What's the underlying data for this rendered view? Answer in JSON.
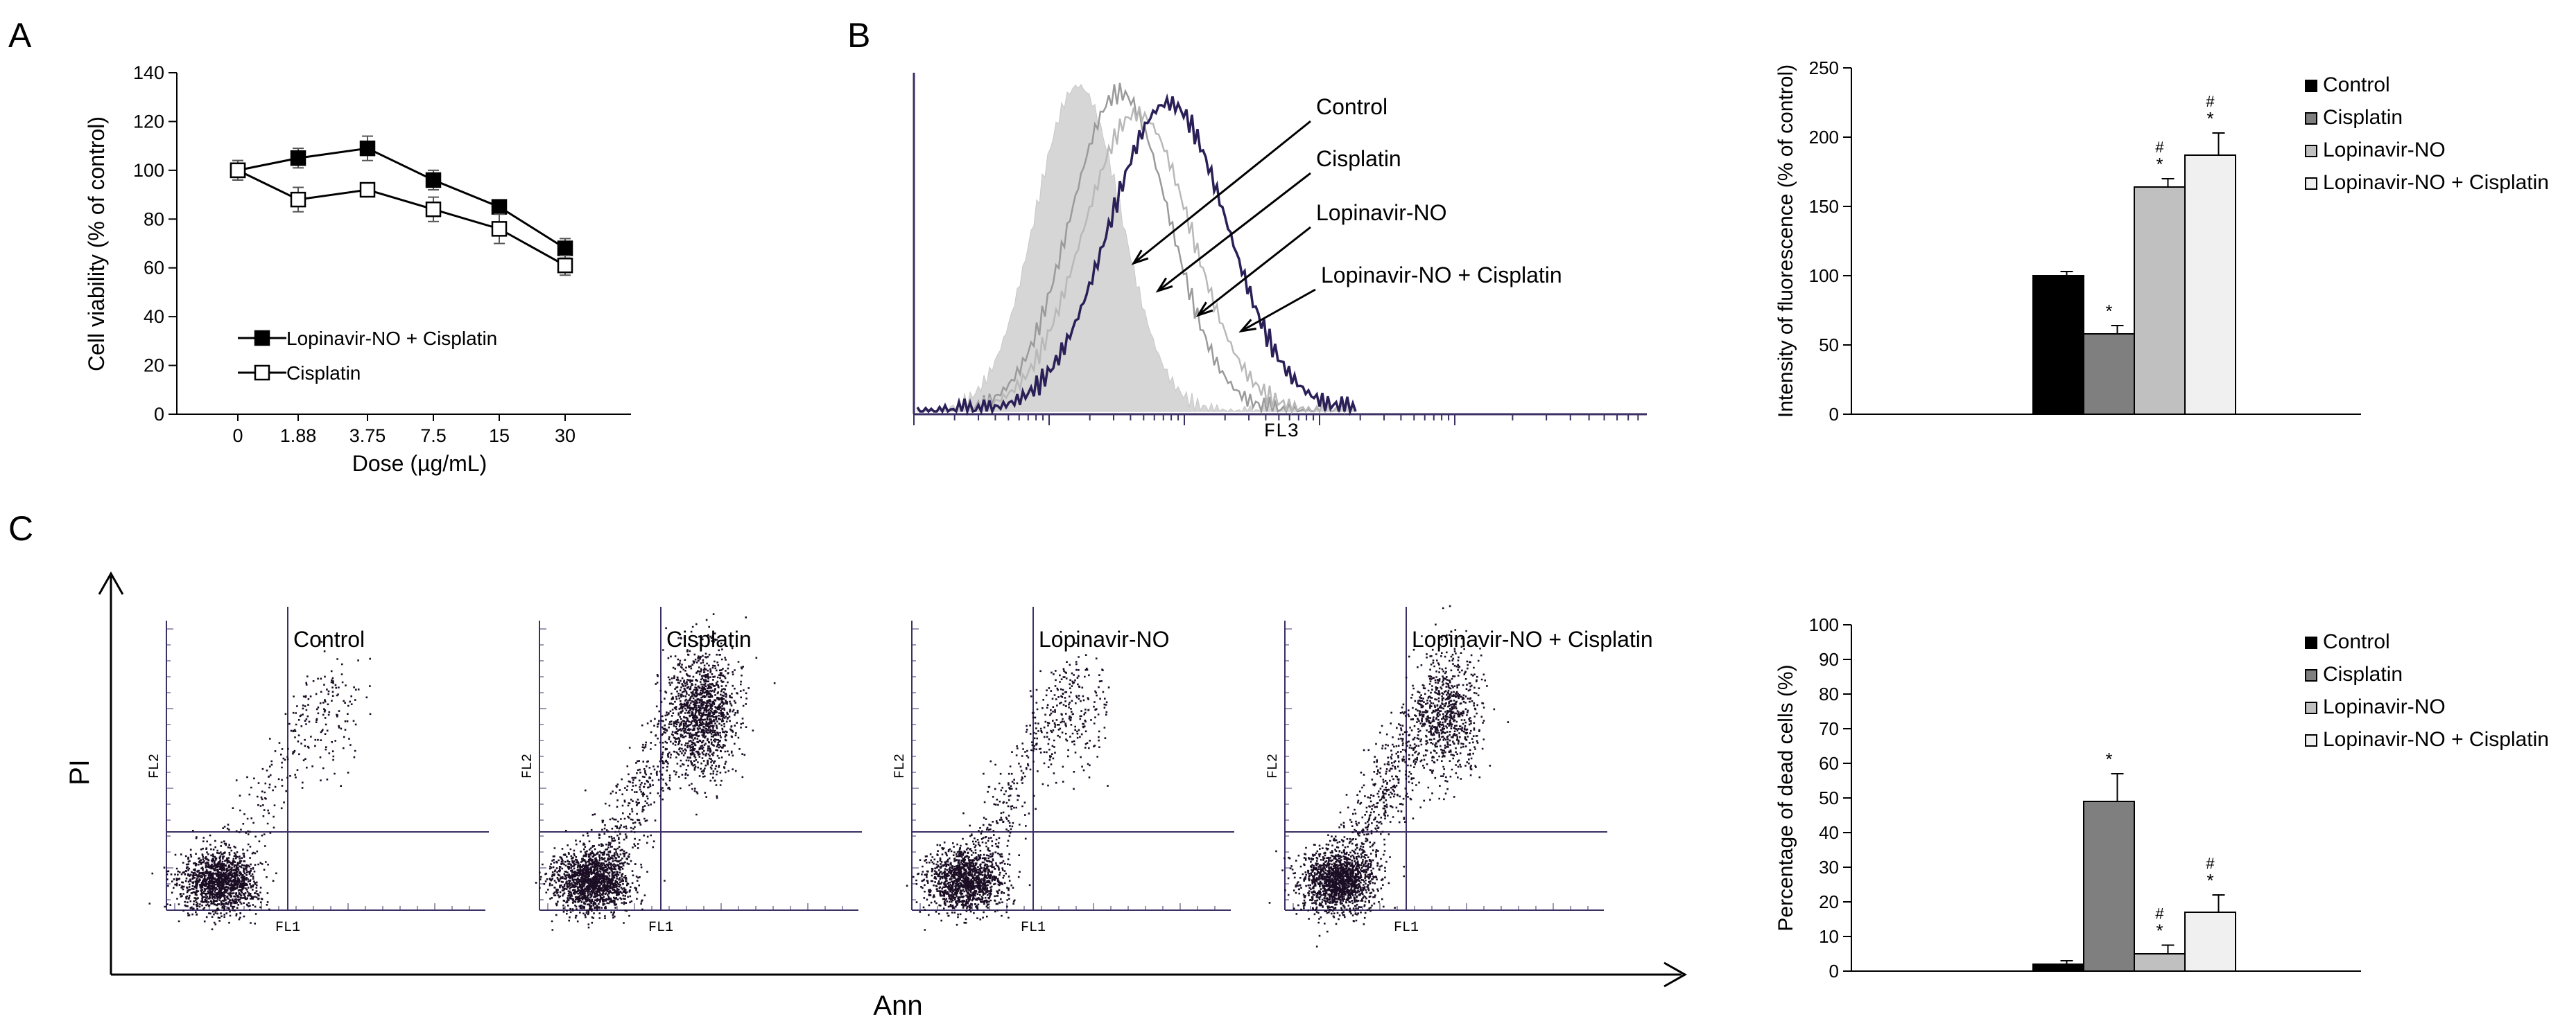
{
  "chart_data": [
    {
      "panel": "A",
      "type": "line",
      "panel_label": "A",
      "xlabel": "Dose (µg/mL)",
      "ylabel": "Cell viability (% of control)",
      "categories": [
        "0",
        "1.88",
        "3.75",
        "7.5",
        "15",
        "30"
      ],
      "ylim": [
        0,
        140
      ],
      "yticks": [
        "0",
        "20",
        "40",
        "60",
        "80",
        "100",
        "120",
        "140"
      ],
      "legend_position": "bottom-left",
      "series": [
        {
          "name": "Lopinavir-NO + Cisplatin",
          "marker": "filled-square",
          "values": [
            100,
            105,
            109,
            96,
            85,
            68
          ],
          "errors": [
            4,
            4,
            5,
            4,
            2,
            4
          ]
        },
        {
          "name": "Cisplatin",
          "marker": "open-square",
          "values": [
            100,
            88,
            92,
            84,
            76,
            61
          ],
          "errors": [
            4,
            5,
            2,
            5,
            6,
            4
          ]
        }
      ]
    },
    {
      "panel": "B-histogram",
      "type": "histogram",
      "panel_label": "B",
      "xlabel": "FL3",
      "annotations": [
        "Control",
        "Cisplatin",
        "Lopinavir-NO",
        "Lopinavir-NO + Cisplatin"
      ]
    },
    {
      "panel": "B-bar",
      "type": "bar",
      "ylabel": "Intensity of fluorescence (% of control)",
      "ylim": [
        0,
        250
      ],
      "yticks": [
        "0",
        "50",
        "100",
        "150",
        "200",
        "250"
      ],
      "legend_position": "top-right",
      "categories": [
        "Control",
        "Cisplatin",
        "Lopinavir-NO",
        "Lopinavir-NO + Cisplatin"
      ],
      "values": [
        100,
        58,
        164,
        187
      ],
      "errors": [
        3,
        6,
        6,
        16
      ],
      "colors": [
        "#000000",
        "#7f7f7f",
        "#c0c0c0",
        "#f0f0f0"
      ],
      "marks": [
        [
          "",
          ""
        ],
        [
          "*",
          ""
        ],
        [
          "*",
          "#"
        ],
        [
          "*",
          "#"
        ]
      ]
    },
    {
      "panel": "C-scatter",
      "type": "scatter",
      "panel_label": "C",
      "xlabel": "Ann",
      "ylabel": "PI",
      "plots": [
        {
          "title": "Control",
          "xaxis": "FL1",
          "yaxis": "FL2"
        },
        {
          "title": "Cisplatin",
          "xaxis": "FL1",
          "yaxis": "FL2"
        },
        {
          "title": "Lopinavir-NO",
          "xaxis": "FL1",
          "yaxis": "FL2"
        },
        {
          "title": "Lopinavir-NO + Cisplatin",
          "xaxis": "FL1",
          "yaxis": "FL2"
        }
      ]
    },
    {
      "panel": "C-bar",
      "type": "bar",
      "ylabel": "Percentage of dead cells (%)",
      "ylim": [
        0,
        100
      ],
      "yticks": [
        "0",
        "10",
        "20",
        "30",
        "40",
        "50",
        "60",
        "70",
        "80",
        "90",
        "100"
      ],
      "legend_position": "top-right",
      "categories": [
        "Control",
        "Cisplatin",
        "Lopinavir-NO",
        "Lopinavir-NO + Cisplatin"
      ],
      "values": [
        2,
        49,
        5,
        17
      ],
      "errors": [
        1,
        8,
        2.5,
        5
      ],
      "colors": [
        "#000000",
        "#7f7f7f",
        "#c0c0c0",
        "#f0f0f0"
      ],
      "marks": [
        [
          "",
          ""
        ],
        [
          "*",
          ""
        ],
        [
          "*",
          "#"
        ],
        [
          "*",
          "#"
        ]
      ]
    }
  ]
}
